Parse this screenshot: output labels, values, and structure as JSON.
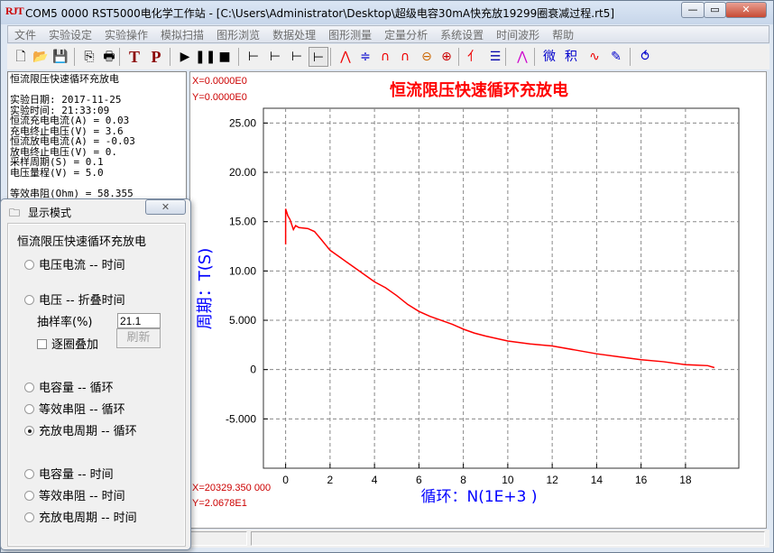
{
  "app": {
    "logo": "RJT",
    "title": "COM5 0000 RST5000电化学工作站 - [C:\\Users\\Administrator\\Desktop\\超级电容30mA快充放19299圈衰减过程.rt5]"
  },
  "window_buttons": {
    "minimize": "—",
    "restore": "▭",
    "close": "✕"
  },
  "menu": [
    "文件",
    "实验设定",
    "实验操作",
    "模拟扫描",
    "图形浏览",
    "数据处理",
    "图形测量",
    "定量分析",
    "系统设置",
    "时间波形",
    "帮助"
  ],
  "toolbar": [
    {
      "name": "new-file-icon",
      "glyph": "🗋",
      "color": "#000"
    },
    {
      "name": "open-folder-icon",
      "glyph": "📂",
      "color": "#c90"
    },
    {
      "name": "save-icon",
      "glyph": "💾",
      "color": "#000"
    },
    {
      "name": "copy-icon",
      "glyph": "⎘",
      "color": "#000"
    },
    {
      "name": "print-icon",
      "glyph": "🖶",
      "color": "#000"
    },
    {
      "name": "t-icon",
      "glyph": "T",
      "color": "#8b0000"
    },
    {
      "name": "p-icon",
      "glyph": "P",
      "color": "#8b0000"
    },
    {
      "name": "play-icon",
      "glyph": "▶",
      "color": "#000"
    },
    {
      "name": "pause-icon",
      "glyph": "❚❚",
      "color": "#000"
    },
    {
      "name": "stop-icon",
      "glyph": "■",
      "color": "#000"
    },
    {
      "name": "axis-1-icon",
      "glyph": "⊢",
      "color": "#000"
    },
    {
      "name": "axis-2-icon",
      "glyph": "⊢",
      "color": "#000"
    },
    {
      "name": "axis-3-icon",
      "glyph": "⊢",
      "color": "#000"
    },
    {
      "name": "axis-4-icon",
      "glyph": "⊢",
      "color": "#000"
    },
    {
      "name": "peak-icon",
      "glyph": "⋀",
      "color": "#e00"
    },
    {
      "name": "baseline-icon",
      "glyph": "≑",
      "color": "#00c"
    },
    {
      "name": "peak-box-icon",
      "glyph": "∩",
      "color": "#e00"
    },
    {
      "name": "peak-box2-icon",
      "glyph": "∩",
      "color": "#e00"
    },
    {
      "name": "zoom-out-icon",
      "glyph": "⊖",
      "color": "#c60"
    },
    {
      "name": "zoom-in-icon",
      "glyph": "⊕",
      "color": "#c00"
    },
    {
      "name": "curve-icon",
      "glyph": "⺅",
      "color": "#e00"
    },
    {
      "name": "list-icon",
      "glyph": "☰",
      "color": "#00a"
    },
    {
      "name": "peaks-icon",
      "glyph": "⋀",
      "color": "#c0c"
    },
    {
      "name": "differential-icon",
      "glyph": "微",
      "color": "#00c"
    },
    {
      "name": "integral-icon",
      "glyph": "积",
      "color": "#00c"
    },
    {
      "name": "fit-icon",
      "glyph": "∿",
      "color": "#e00"
    },
    {
      "name": "draw-icon",
      "glyph": "✎",
      "color": "#00c"
    },
    {
      "name": "spin-icon",
      "glyph": "⥀",
      "color": "#00c"
    }
  ],
  "info_panel": {
    "text": "恒流限压快速循环充放电\n\n实验日期: 2017-11-25\n实验时间: 21:33:09\n恒流充电电流(A) = 0.03\n充电终止电压(V) = 3.6\n恒流放电电流(A) = -0.03\n放电终止电压(V) = 0.\n采样周期(S) = 0.1\n电压量程(V) = 5.0\n\n等效串阻(Ohm) = 58.355"
  },
  "chart_readout": {
    "x_top": "X=0.0000E0",
    "y_top": "Y=0.0000E0",
    "x_bottom": "X=20329.350 000",
    "y_bottom": "Y=2.0678E1"
  },
  "dialog": {
    "title": "显示模式",
    "close": "✕",
    "group": "恒流限压快速循环充放电",
    "options": [
      {
        "label": "电压电流 -- 时间",
        "checked": false
      },
      {
        "label": "电压 -- 折叠时间",
        "checked": false
      },
      {
        "label": "电容量 -- 循环",
        "checked": false
      },
      {
        "label": "等效串阻 -- 循环",
        "checked": false
      },
      {
        "label": "充放电周期 -- 循环",
        "checked": true
      },
      {
        "label": "电容量 -- 时间",
        "checked": false
      },
      {
        "label": "等效串阻 -- 时间",
        "checked": false
      },
      {
        "label": "充放电周期 -- 时间",
        "checked": false
      }
    ],
    "sample_rate_label": "抽样率(%)",
    "sample_rate_value": "21.1",
    "overlay_label": "逐圈叠加",
    "overlay_checked": false,
    "refresh": "刷新"
  },
  "chart_data": {
    "type": "line",
    "title": "恒流限压快速循环充放电",
    "xlabel": "循环：N(1E+3 )",
    "ylabel": "周期：T(S)",
    "xlim": [
      -1,
      20.4
    ],
    "ylim": [
      -10,
      26.5
    ],
    "xticks": [
      0,
      2,
      4,
      6,
      8,
      10,
      12,
      14,
      16,
      18
    ],
    "yticks": [
      25,
      20,
      15,
      10,
      5,
      0,
      -5
    ],
    "ytick_labels": [
      "25.00",
      "20.00",
      "15.00",
      "10.00",
      "5.000",
      "0",
      "-5.000"
    ],
    "grid": true,
    "color": "#ff0000",
    "title_color": "#ff0000",
    "label_color": "#0000ff",
    "x": [
      0,
      0,
      0.1,
      0.2,
      0.35,
      0.45,
      0.6,
      1,
      1.3,
      1.6,
      2,
      2.5,
      3,
      3.5,
      4,
      4.5,
      5,
      5.5,
      6,
      6.5,
      7,
      7.5,
      8,
      8.5,
      9,
      10,
      11,
      12,
      13,
      14,
      15,
      16,
      17,
      18,
      19,
      19.3
    ],
    "y": [
      12.7,
      16.3,
      15.6,
      15.2,
      14.2,
      14.6,
      14.4,
      14.3,
      14.0,
      13.2,
      12.1,
      11.3,
      10.5,
      9.7,
      8.9,
      8.3,
      7.5,
      6.6,
      5.9,
      5.4,
      5.0,
      4.6,
      4.1,
      3.7,
      3.4,
      2.9,
      2.6,
      2.4,
      2.0,
      1.6,
      1.3,
      1.0,
      0.8,
      0.5,
      0.4,
      0.2
    ]
  }
}
